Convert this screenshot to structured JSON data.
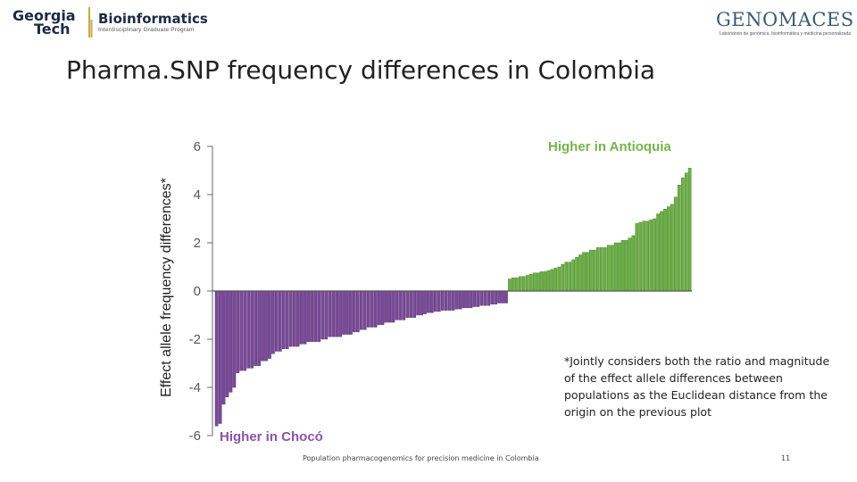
{
  "header": {
    "logo_left_line1": "Georgia",
    "logo_left_line2": "Tech",
    "logo_left_program": "Bioinformatics",
    "logo_left_subtitle": "Interdisciplinary Graduate Program",
    "logo_right": "GENOMACES",
    "logo_right_subtitle": "Laboratorio de genómica, bioinformática y medicina personalizada"
  },
  "title": "Pharma.SNP frequency differences in Colombia",
  "footnote": "*Jointly considers both the ratio and magnitude of the effect allele differences between populations as the Euclidean distance from the origin on the previous plot",
  "footer": "Population pharmacogenomics for precision medicine in Colombia",
  "page_number": "11",
  "colors": {
    "positive_fill": "#6cb044",
    "positive_stroke": "#3f7a26",
    "negative_fill": "#7b4a9a",
    "negative_stroke": "#4a2463",
    "axis": "#666666",
    "zero_line": "#555555"
  },
  "chart_data": {
    "type": "bar",
    "title": "",
    "xlabel": "",
    "ylabel": "Effect allele frequency differences*",
    "ylim": [
      -6,
      6
    ],
    "yticks": [
      "6",
      "4",
      "2",
      "0",
      "-2",
      "-4",
      "-6"
    ],
    "annotations": {
      "positive": "Higher in Antioquia",
      "negative": "Higher in Chocó"
    },
    "values": [
      -5.6,
      -5.5,
      -4.7,
      -4.4,
      -4.2,
      -4.0,
      -3.4,
      -3.3,
      -3.3,
      -3.2,
      -3.2,
      -3.1,
      -3.1,
      -2.9,
      -2.9,
      -2.8,
      -2.6,
      -2.5,
      -2.5,
      -2.4,
      -2.4,
      -2.3,
      -2.3,
      -2.3,
      -2.2,
      -2.2,
      -2.1,
      -2.1,
      -2.1,
      -2.1,
      -2.0,
      -2.0,
      -1.9,
      -1.9,
      -1.9,
      -1.9,
      -1.8,
      -1.8,
      -1.8,
      -1.7,
      -1.7,
      -1.6,
      -1.6,
      -1.5,
      -1.5,
      -1.5,
      -1.4,
      -1.4,
      -1.3,
      -1.3,
      -1.3,
      -1.2,
      -1.2,
      -1.2,
      -1.1,
      -1.1,
      -1.1,
      -1.0,
      -1.0,
      -0.95,
      -0.9,
      -0.9,
      -0.85,
      -0.85,
      -0.8,
      -0.8,
      -0.8,
      -0.8,
      -0.75,
      -0.75,
      -0.7,
      -0.7,
      -0.7,
      -0.65,
      -0.65,
      -0.6,
      -0.6,
      -0.6,
      -0.55,
      -0.55,
      -0.5,
      -0.5,
      -0.5,
      0.5,
      0.55,
      0.55,
      0.6,
      0.6,
      0.65,
      0.7,
      0.75,
      0.75,
      0.8,
      0.8,
      0.85,
      0.9,
      0.95,
      1.0,
      1.1,
      1.2,
      1.2,
      1.3,
      1.4,
      1.5,
      1.6,
      1.6,
      1.7,
      1.7,
      1.8,
      1.8,
      1.8,
      1.9,
      1.9,
      2.0,
      2.0,
      2.1,
      2.1,
      2.2,
      2.3,
      2.8,
      2.85,
      2.9,
      2.9,
      2.95,
      3.0,
      3.2,
      3.3,
      3.4,
      3.5,
      3.6,
      3.9,
      4.4,
      4.7,
      4.9,
      5.1
    ]
  }
}
